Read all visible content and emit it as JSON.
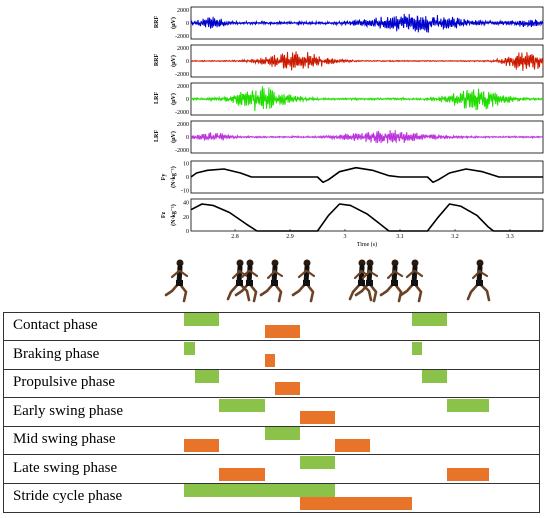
{
  "chart_data": [
    {
      "type": "line",
      "title": "",
      "xlabel": "Time (s)",
      "x_ticks": [
        "2.8",
        "2.9",
        "3",
        "3.1",
        "3.2",
        "3.3"
      ],
      "xlim": [
        2.72,
        3.36
      ],
      "panels": [
        {
          "ylabel": "RRF",
          "unit": "(µV)",
          "y_ticks": [
            "2000",
            "0",
            "-2000"
          ],
          "ylim": [
            -2500,
            2500
          ],
          "color": "#0000cc",
          "bursts": [
            {
              "center": 2.76,
              "width": 0.04,
              "amp": 700
            },
            {
              "center": 3.13,
              "width": 0.13,
              "amp": 1300
            },
            {
              "center": 3.33,
              "width": 0.04,
              "amp": 500
            }
          ],
          "baseline_amp": 220
        },
        {
          "ylabel": "RRF",
          "unit": "(µV)",
          "y_ticks": [
            "2000",
            "0",
            "-2000"
          ],
          "ylim": [
            -2500,
            2500
          ],
          "color": "#cc1a00",
          "bursts": [
            {
              "center": 2.91,
              "width": 0.09,
              "amp": 1500
            },
            {
              "center": 3.33,
              "width": 0.06,
              "amp": 1600
            }
          ],
          "baseline_amp": 80
        },
        {
          "ylabel": "LRF",
          "unit": "(µV)",
          "y_ticks": [
            "2000",
            "0",
            "-2000"
          ],
          "ylim": [
            -2500,
            2500
          ],
          "color": "#22dd00",
          "bursts": [
            {
              "center": 2.85,
              "width": 0.08,
              "amp": 1700
            },
            {
              "center": 3.24,
              "width": 0.08,
              "amp": 1600
            }
          ],
          "baseline_amp": 150
        },
        {
          "ylabel": "LRF",
          "unit": "(µV)",
          "y_ticks": [
            "2000",
            "0",
            "-2000"
          ],
          "ylim": [
            -2500,
            2500
          ],
          "color": "#bb33dd",
          "bursts": [
            {
              "center": 2.76,
              "width": 0.05,
              "amp": 600
            },
            {
              "center": 3.08,
              "width": 0.12,
              "amp": 900
            }
          ],
          "baseline_amp": 120
        }
      ],
      "force_panels": [
        {
          "ylabel": "Fy",
          "unit": "(N·kg⁻¹)",
          "y_ticks": [
            "10",
            "0",
            "-10"
          ],
          "ylim": [
            -12,
            12
          ],
          "color": "#000000",
          "points": [
            [
              2.72,
              0
            ],
            [
              2.73,
              3
            ],
            [
              2.75,
              5
            ],
            [
              2.78,
              6
            ],
            [
              2.81,
              3
            ],
            [
              2.83,
              0
            ],
            [
              2.9,
              0
            ],
            [
              2.95,
              0
            ],
            [
              2.96,
              -4
            ],
            [
              2.97,
              -2
            ],
            [
              2.99,
              4
            ],
            [
              3.02,
              7
            ],
            [
              3.05,
              5
            ],
            [
              3.08,
              1
            ],
            [
              3.1,
              0
            ],
            [
              3.15,
              0
            ],
            [
              3.16,
              -4
            ],
            [
              3.17,
              -2
            ],
            [
              3.19,
              3
            ],
            [
              3.22,
              6
            ],
            [
              3.25,
              4
            ],
            [
              3.28,
              0
            ],
            [
              3.36,
              0
            ]
          ]
        },
        {
          "ylabel": "Fz",
          "unit": "(N·kg⁻¹)",
          "y_ticks": [
            "40",
            "20",
            "0"
          ],
          "ylim": [
            0,
            45
          ],
          "color": "#000000",
          "points": [
            [
              2.72,
              30
            ],
            [
              2.74,
              38
            ],
            [
              2.76,
              36
            ],
            [
              2.79,
              26
            ],
            [
              2.82,
              10
            ],
            [
              2.84,
              0
            ],
            [
              2.95,
              0
            ],
            [
              2.97,
              22
            ],
            [
              2.99,
              38
            ],
            [
              3.01,
              36
            ],
            [
              3.04,
              24
            ],
            [
              3.07,
              6
            ],
            [
              3.08,
              0
            ],
            [
              3.15,
              0
            ],
            [
              3.17,
              20
            ],
            [
              3.19,
              38
            ],
            [
              3.21,
              35
            ],
            [
              3.24,
              22
            ],
            [
              3.26,
              6
            ],
            [
              3.27,
              0
            ],
            [
              3.36,
              0
            ]
          ]
        }
      ]
    },
    {
      "type": "table",
      "rows": [
        {
          "label": "Contact phase",
          "segments": [
            {
              "start": 0.0,
              "end": 0.1,
              "color": "green"
            },
            {
              "start": 0.23,
              "end": 0.33,
              "color": "orange"
            },
            {
              "start": 0.65,
              "end": 0.75,
              "color": "green"
            }
          ]
        },
        {
          "label": "Braking phase",
          "segments": [
            {
              "start": 0.0,
              "end": 0.03,
              "color": "green"
            },
            {
              "start": 0.23,
              "end": 0.26,
              "color": "orange"
            },
            {
              "start": 0.65,
              "end": 0.68,
              "color": "green"
            }
          ]
        },
        {
          "label": "Propulsive phase",
          "segments": [
            {
              "start": 0.03,
              "end": 0.1,
              "color": "green"
            },
            {
              "start": 0.26,
              "end": 0.33,
              "color": "orange"
            },
            {
              "start": 0.68,
              "end": 0.75,
              "color": "green"
            }
          ]
        },
        {
          "label": "Early swing phase",
          "segments": [
            {
              "start": 0.1,
              "end": 0.23,
              "color": "green"
            },
            {
              "start": 0.33,
              "end": 0.43,
              "color": "orange"
            },
            {
              "start": 0.75,
              "end": 0.87,
              "color": "green"
            }
          ]
        },
        {
          "label": "Mid swing phase",
          "segments": [
            {
              "start": 0.0,
              "end": 0.1,
              "color": "orange"
            },
            {
              "start": 0.23,
              "end": 0.33,
              "color": "green"
            },
            {
              "start": 0.43,
              "end": 0.53,
              "color": "orange"
            }
          ]
        },
        {
          "label": "Late swing phase",
          "segments": [
            {
              "start": 0.1,
              "end": 0.23,
              "color": "orange"
            },
            {
              "start": 0.33,
              "end": 0.43,
              "color": "green"
            },
            {
              "start": 0.75,
              "end": 0.87,
              "color": "orange"
            }
          ]
        },
        {
          "label": "Stride cycle phase",
          "segments": [
            {
              "start": 0.0,
              "end": 0.43,
              "color": "green"
            },
            {
              "start": 0.33,
              "end": 0.65,
              "color": "orange"
            }
          ]
        }
      ]
    }
  ],
  "colors": {
    "green": "#8bc34a",
    "orange": "#e8742a"
  },
  "runner_figures": 10
}
